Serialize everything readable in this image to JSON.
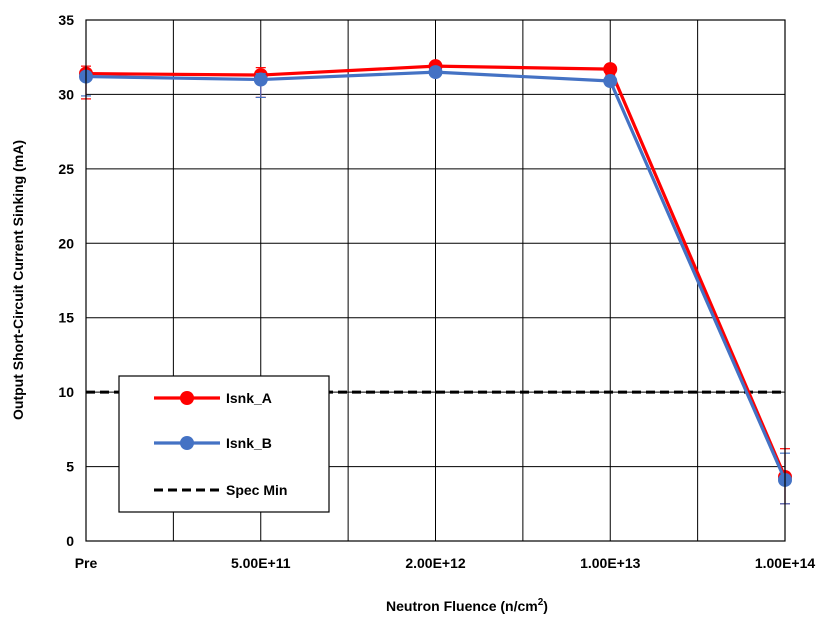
{
  "chart_data": {
    "type": "line",
    "title": "",
    "categories": [
      "Pre",
      "5.00E+11",
      "2.00E+12",
      "1.00E+13",
      "1.00E+14"
    ],
    "xlabel": "Neutron Fluence (n/cm",
    "xlabel_superscript": "2",
    "xlabel_suffix": ")",
    "ylabel": "Output Short-Circuit Current Sinking (mA)",
    "ylim": [
      0,
      35
    ],
    "yticks": [
      "0",
      "5",
      "10",
      "15",
      "20",
      "25",
      "30",
      "35"
    ],
    "grid": true,
    "legend_position": "bottom-left",
    "series": [
      {
        "name": "Isnk_A",
        "color": "#ff0000",
        "marker": "circle",
        "values": [
          31.4,
          31.3,
          31.9,
          31.7,
          4.3
        ],
        "error_low": [
          29.7,
          29.8,
          31.5,
          31.3,
          2.5
        ],
        "error_high": [
          31.9,
          31.8,
          32.2,
          31.9,
          6.2
        ]
      },
      {
        "name": "Isnk_B",
        "color": "#4472c4",
        "marker": "circle",
        "values": [
          31.2,
          31.0,
          31.5,
          30.9,
          4.1
        ],
        "error_low": [
          29.9,
          29.8,
          31.2,
          30.6,
          2.5
        ],
        "error_high": [
          31.5,
          31.4,
          31.8,
          31.2,
          5.9
        ]
      },
      {
        "name": "Spec Min",
        "color": "#000000",
        "style": "dashed",
        "values": [
          10,
          10,
          10,
          10,
          10
        ]
      }
    ]
  }
}
